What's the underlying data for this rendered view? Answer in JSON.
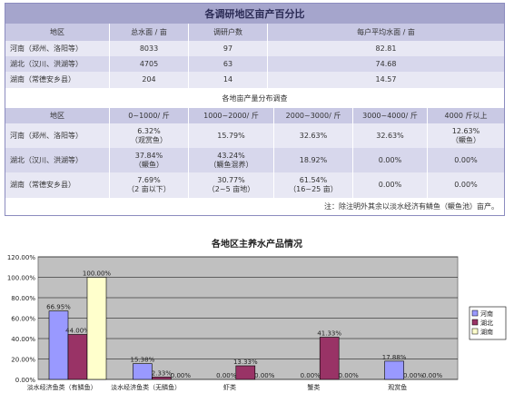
{
  "table": {
    "title": "各调研地区亩产百分比",
    "header1": [
      "地区",
      "总水面 / 亩",
      "调研户数",
      "每户平均水面 / 亩"
    ],
    "rows1": [
      [
        "河南（郑州、洛阳等）",
        "8033",
        "97",
        "82.81"
      ],
      [
        "湖北（汉川、洪湖等）",
        "4705",
        "63",
        "74.68"
      ],
      [
        "湖南（常德安乡县）",
        "204",
        "14",
        "14.57"
      ]
    ],
    "subtitle": "各地亩产量分布调查",
    "header2": [
      "地区",
      "0~1000/ 斤",
      "1000~2000/ 斤",
      "2000~3000/ 斤",
      "3000~4000/ 斤",
      "4000 斤以上"
    ],
    "rows2": [
      {
        "region": "河南（郑州、洛阳等）",
        "c1": "6.32%",
        "c1b": "（观赏鱼）",
        "c2": "15.79%",
        "c2b": "",
        "c3": "32.63%",
        "c3b": "",
        "c4": "32.63%",
        "c5": "12.63%",
        "c5b": "（鳜鱼）"
      },
      {
        "region": "湖北（汉川、洪湖等）",
        "c1": "37.84%",
        "c1b": "（鳜鱼）",
        "c2": "43.24%",
        "c2b": "（鳜鱼混养）",
        "c3": "18.92%",
        "c3b": "",
        "c4": "0.00%",
        "c5": "0.00%",
        "c5b": ""
      },
      {
        "region": "湖南（常德安乡县）",
        "c1": "7.69%",
        "c1b": "（2 亩以下）",
        "c2": "30.77%",
        "c2b": "（2~5 亩地）",
        "c3": "61.54%",
        "c3b": "（16~25 亩）",
        "c4": "0.00%",
        "c5": "0.00%",
        "c5b": ""
      }
    ],
    "note": "注：除注明外其余以淡水经济有鳞鱼（鳜鱼池）亩产。"
  },
  "colors": {
    "henan": "#9999ff",
    "hubei": "#993366",
    "hunan": "#ffffcc",
    "plot_bg": "#c0c0c0"
  },
  "chart_data": {
    "type": "bar",
    "title": "各地区主养水产品情况",
    "categories": [
      "淡水经济鱼类（有鳞鱼）",
      "淡水经济鱼类（无鳞鱼）",
      "虾类",
      "蟹类",
      "观赏鱼"
    ],
    "series": [
      {
        "name": "河南",
        "values": [
          66.95,
          15.38,
          0.0,
          0.0,
          17.88
        ],
        "labels": [
          "66.95%",
          "15.38%",
          "0.00%",
          "0.00%",
          "17.88%"
        ]
      },
      {
        "name": "湖北",
        "values": [
          44.0,
          2.33,
          13.33,
          41.33,
          0.0
        ],
        "labels": [
          "44.00%",
          "2.33%",
          "13.33%",
          "41.33%",
          "0.00%"
        ]
      },
      {
        "name": "湖南",
        "values": [
          100.0,
          0.0,
          0.0,
          0.0,
          0.0
        ],
        "labels": [
          "100.00%",
          "0.00%",
          "0.00%",
          "0.00%",
          "0.00%"
        ]
      }
    ],
    "yticks": [
      "0.00%",
      "20.00%",
      "40.00%",
      "60.00%",
      "80.00%",
      "100.00%",
      "120.00%"
    ],
    "ylim": [
      0,
      120
    ],
    "legend": "right",
    "grid": true
  }
}
